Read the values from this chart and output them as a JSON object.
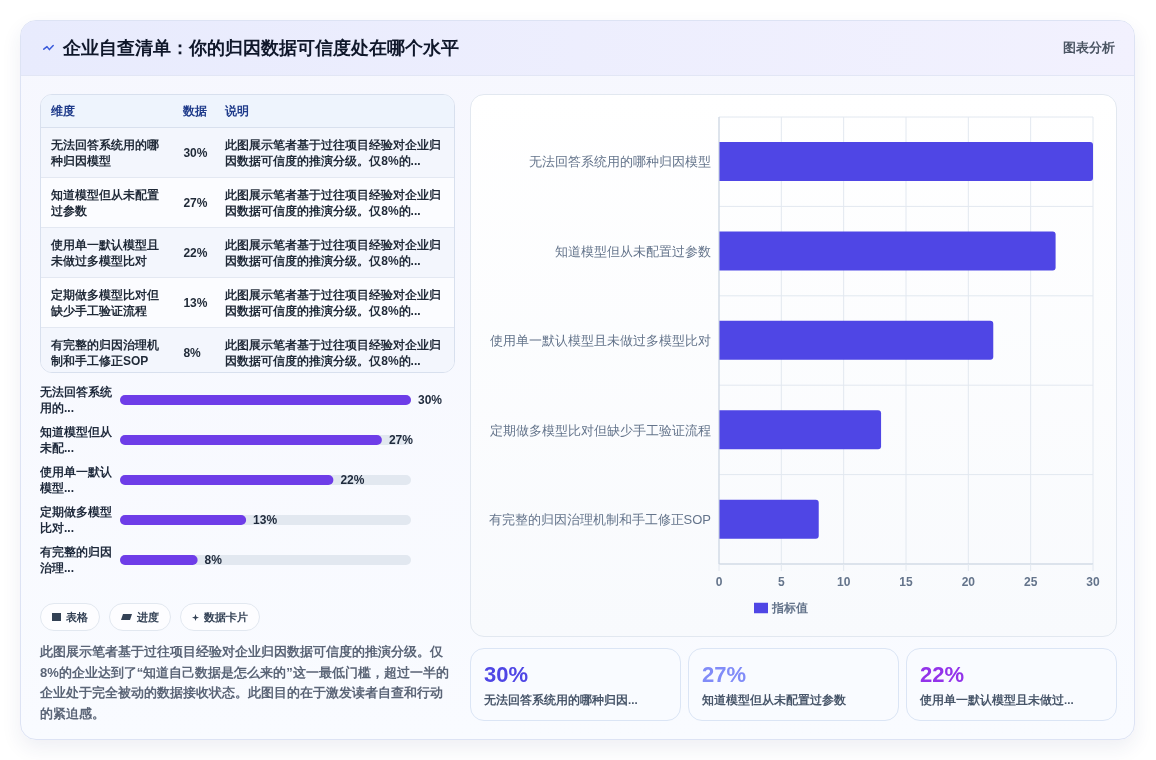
{
  "chart_data": [
    {
      "type": "other",
      "title": "企业自查清单：你的归因数据可信度处在哪个水平",
      "subtitle": "图表分析"
    },
    {
      "type": "other",
      "categories": [
        "无法回答系统用的哪种归因模型",
        "知道模型但从未配置过参数",
        "使用单一默认模型且未做过多模型比对",
        "定期做多模型比对但缺少手工验证流程",
        "有完整的归因治理机制和手工修正SOP"
      ],
      "value_labels": [
        "30%",
        "27%",
        "22%",
        "13%",
        "8%"
      ],
      "annotations": [
        "维度",
        "数据",
        "说明",
        "此图展示笔者基于过往项目经验对企业归因数据可信度的推演分级。仅8%的...",
        "此图展示笔者基于过往项目经验对企业归因数据可信度的推演分级。仅8%的...",
        "此图展示笔者基于过往项目经验对企业归因数据可信度的推演分级。仅8%的...",
        "此图展示笔者基于过往项目经验对企业归因数据可信度的推演分级。仅8%的...",
        "此图展示笔者基于过往项目经验对企业归因数据可信度的推演分级。仅8%的..."
      ]
    },
    {
      "type": "bar",
      "orientation": "horizontal",
      "categories": [
        "无法回答系统用的...",
        "知道模型但从未配...",
        "使用单一默认模型...",
        "定期做多模型比对...",
        "有完整的归因治理..."
      ],
      "values": [
        30,
        27,
        22,
        13,
        8
      ],
      "value_labels": [
        "30%",
        "27%",
        "22%",
        "13%",
        "8%"
      ],
      "color": "#6e3de8",
      "tick_labels": "y"
    },
    {
      "type": "other",
      "annotations": [
        "表格",
        "进度",
        "数据卡片",
        "此图展示笔者基于过往项目经验对企业归因数据可信度的推演分级。仅8%的企业达到了“知道自己数据是怎么来的”这一最低门槛，超过一半的企业处于完全被动的数据接收状态。此图目的在于激发读者自查和行动的紧迫感。"
      ]
    },
    {
      "type": "bar",
      "orientation": "horizontal",
      "categories": [
        "无法回答系统用的哪种归因模型",
        "知道模型但从未配置过参数",
        "使用单一默认模型且未做过多模型比对",
        "定期做多模型比对但缺少手工验证流程",
        "有完整的归因治理机制和手工修正SOP"
      ],
      "series": [
        {
          "name": "指标值",
          "color": "#4f46e5",
          "values": [
            30,
            27,
            22,
            13,
            8
          ]
        }
      ],
      "xlim": [
        0,
        30
      ],
      "xticks": [
        0,
        5,
        10,
        15,
        20,
        25,
        30
      ],
      "grid": true,
      "legend": "bottom"
    },
    {
      "type": "other",
      "categories": [
        "无法回答系统用的哪种归因...",
        "知道模型但从未配置过参数",
        "使用单一默认模型且未做过..."
      ],
      "value_labels": [
        "30%",
        "27%",
        "22%"
      ]
    }
  ]
}
